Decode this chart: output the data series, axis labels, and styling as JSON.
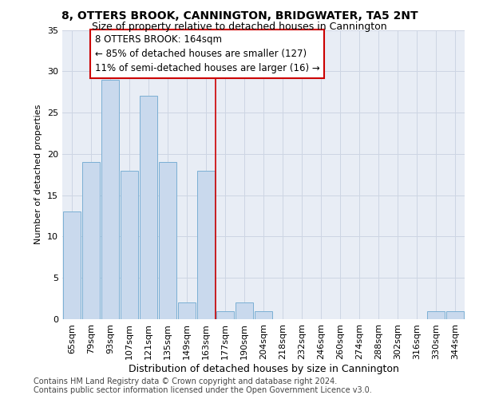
{
  "title": "8, OTTERS BROOK, CANNINGTON, BRIDGWATER, TA5 2NT",
  "subtitle": "Size of property relative to detached houses in Cannington",
  "xlabel": "Distribution of detached houses by size in Cannington",
  "ylabel": "Number of detached properties",
  "bin_labels": [
    "65sqm",
    "79sqm",
    "93sqm",
    "107sqm",
    "121sqm",
    "135sqm",
    "149sqm",
    "163sqm",
    "177sqm",
    "190sqm",
    "204sqm",
    "218sqm",
    "232sqm",
    "246sqm",
    "260sqm",
    "274sqm",
    "288sqm",
    "302sqm",
    "316sqm",
    "330sqm",
    "344sqm"
  ],
  "values": [
    13,
    19,
    29,
    18,
    27,
    19,
    2,
    18,
    1,
    2,
    1,
    0,
    0,
    0,
    0,
    0,
    0,
    0,
    0,
    1,
    1
  ],
  "bar_color": "#c9d9ed",
  "bar_edge_color": "#7bafd4",
  "vline_index": 7.5,
  "vline_color": "#cc0000",
  "annotation_text": "8 OTTERS BROOK: 164sqm\n← 85% of detached houses are smaller (127)\n11% of semi-detached houses are larger (16) →",
  "annotation_box_color": "white",
  "annotation_box_edge_color": "#cc0000",
  "ylim": [
    0,
    35
  ],
  "yticks": [
    0,
    5,
    10,
    15,
    20,
    25,
    30,
    35
  ],
  "grid_color": "#cdd5e3",
  "bg_color": "#e8edf5",
  "footer1": "Contains HM Land Registry data © Crown copyright and database right 2024.",
  "footer2": "Contains public sector information licensed under the Open Government Licence v3.0.",
  "title_fontsize": 10,
  "subtitle_fontsize": 9,
  "xlabel_fontsize": 9,
  "ylabel_fontsize": 8,
  "tick_fontsize": 8,
  "annotation_fontsize": 8.5,
  "footer_fontsize": 7
}
